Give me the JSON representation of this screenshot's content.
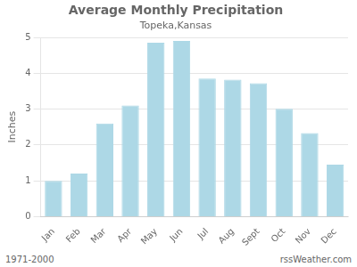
{
  "chart_data": {
    "type": "bar",
    "title": "Average Monthly Precipitation",
    "subtitle": "Topeka,Kansas",
    "ylabel": "Inches",
    "categories": [
      "Jan",
      "Feb",
      "Mar",
      "Apr",
      "May",
      "Jun",
      "Jul",
      "Aug",
      "Sept",
      "Oct",
      "Nov",
      "Dec"
    ],
    "values": [
      1.0,
      1.2,
      2.6,
      3.1,
      4.85,
      4.9,
      3.85,
      3.82,
      3.72,
      3.01,
      2.33,
      1.45
    ],
    "color": "#add8e6",
    "ylim": [
      0,
      5.0
    ],
    "yticks": [
      0,
      1,
      2,
      3,
      4,
      5
    ],
    "grid": true,
    "annotations": [
      "1971-2000",
      "rssWeather.com"
    ]
  }
}
